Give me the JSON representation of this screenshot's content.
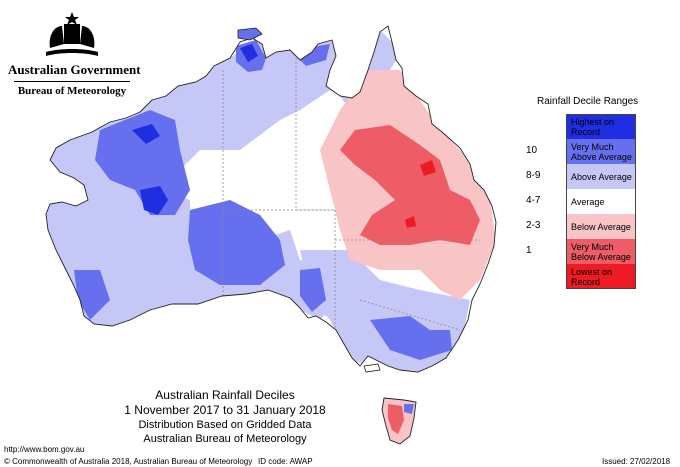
{
  "header": {
    "org": "Australian Government",
    "agency": "Bureau of Meteorology"
  },
  "legend": {
    "title": "Rainfall Decile Ranges",
    "items": [
      {
        "code": "",
        "label": "Highest on Record",
        "color": "#1f2ee0"
      },
      {
        "code": "10",
        "label": "Very Much Above Average",
        "color": "#6670ee"
      },
      {
        "code": "8-9",
        "label": "Above Average",
        "color": "#c5c8f6"
      },
      {
        "code": "4-7",
        "label": "Average",
        "color": "#ffffff"
      },
      {
        "code": "2-3",
        "label": "Below Average",
        "color": "#f8c4c6"
      },
      {
        "code": "1",
        "label": "Very Much Below Average",
        "color": "#ee5c66"
      },
      {
        "code": "",
        "label": "Lowest on Record",
        "color": "#ee1b24"
      }
    ]
  },
  "caption": {
    "title": "Australian Rainfall Deciles",
    "period": "1 November 2017 to 31 January 2018",
    "method": "Distribution Based on Gridded Data",
    "source": "Australian Bureau of Meteorology"
  },
  "footer": {
    "url": "http://www.bom.gov.au",
    "copyright": "© Commonwealth of Australia 2018, Australian Bureau of Meteorology",
    "id_code": "ID code: AWAP",
    "issued": "Issued: 27/02/2018"
  },
  "map": {
    "colors": {
      "highest": "#1f2ee0",
      "very_much_above": "#6670ee",
      "above": "#c5c8f6",
      "average": "#ffffff",
      "below": "#f8c4c6",
      "very_much_below": "#ee5c66",
      "lowest": "#ee1b24"
    }
  }
}
